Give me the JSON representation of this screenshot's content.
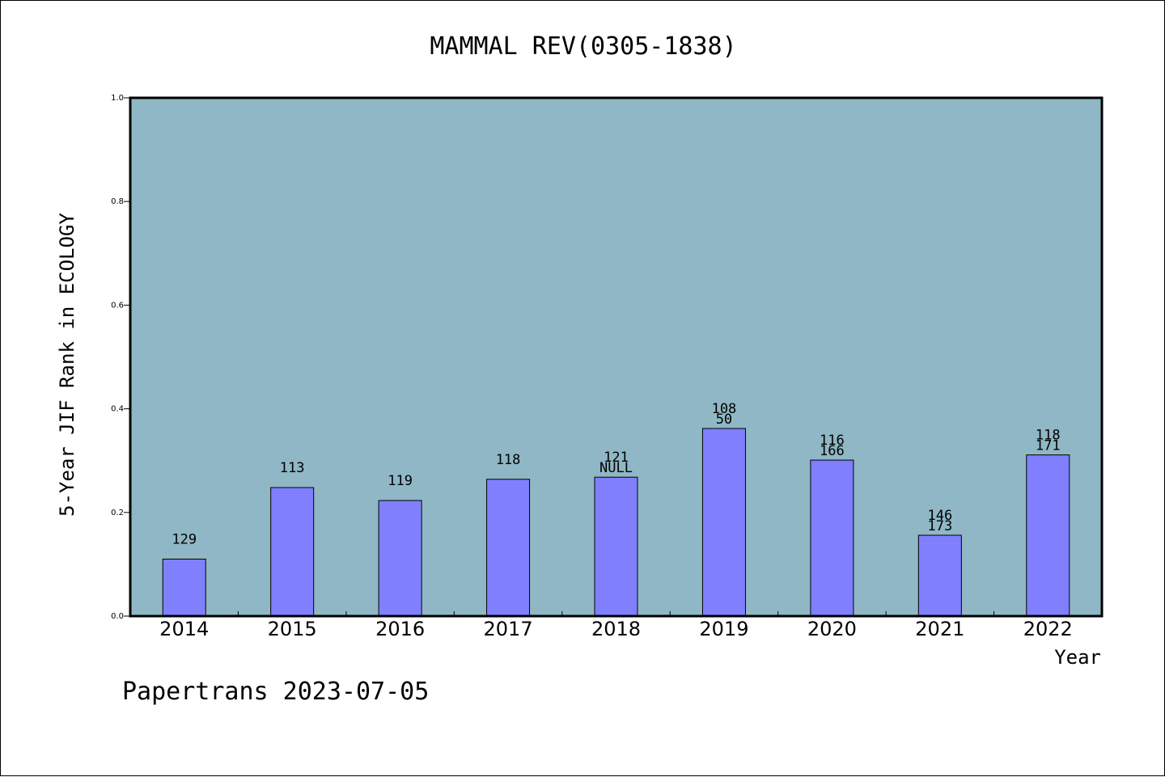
{
  "chart_data": {
    "type": "bar",
    "title": "MAMMAL REV(0305-1838)",
    "xlabel": "Year",
    "ylabel": "5-Year JIF Rank in ECOLOGY",
    "ylim": [
      0,
      1.0
    ],
    "yticks": [
      "0.0",
      "0.2",
      "0.4",
      "0.6",
      "0.8",
      "1.0"
    ],
    "categories": [
      "2014",
      "2015",
      "2016",
      "2017",
      "2018",
      "2019",
      "2020",
      "2021",
      "2022"
    ],
    "values": [
      0.11,
      0.248,
      0.223,
      0.264,
      0.268,
      0.362,
      0.301,
      0.156,
      0.311
    ],
    "labels_top": [
      "129",
      "113",
      "119",
      "118",
      "121",
      "108",
      "116",
      "146",
      "118"
    ],
    "labels_bottom": [
      "",
      "",
      "",
      "",
      "NULL",
      "50",
      "166",
      "173",
      "171"
    ],
    "grid": false,
    "colors": {
      "plot_background": "#8fb7c5",
      "bar_fill": "#8080ff",
      "bar_stroke": "#000000"
    }
  },
  "footer": {
    "credit": "Papertrans 2023-07-05"
  }
}
